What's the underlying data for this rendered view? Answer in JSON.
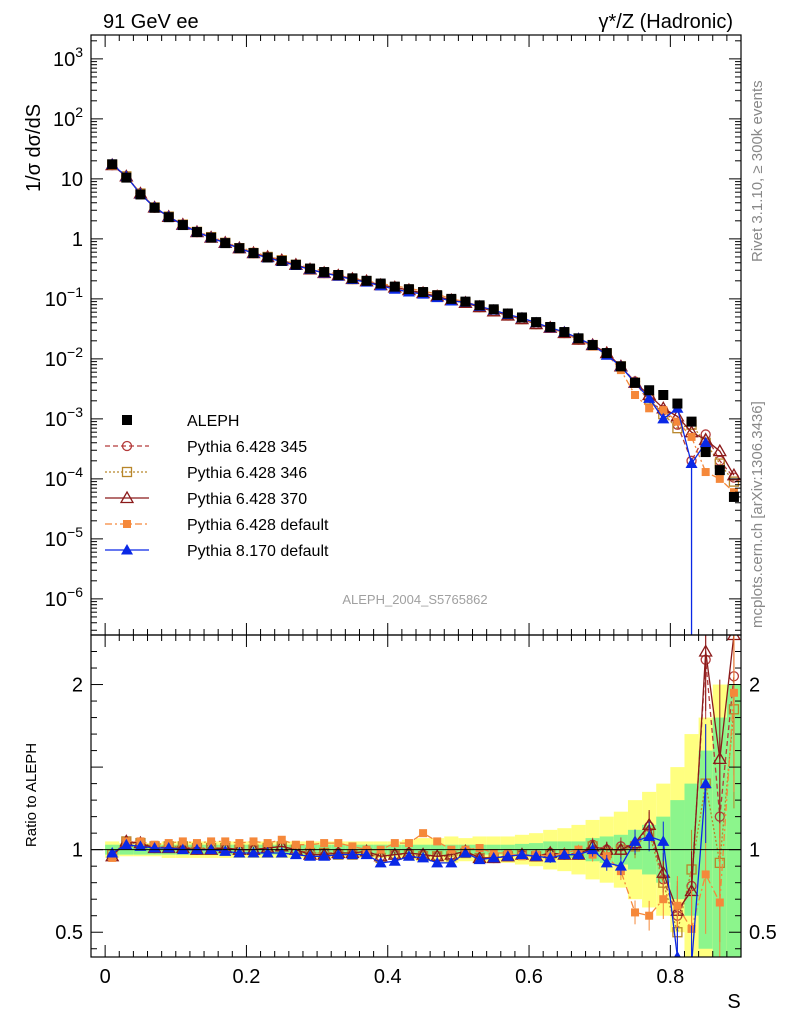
{
  "header": {
    "left": "91 GeV ee",
    "right": "γ*/Z (Hadronic)"
  },
  "side_notes": {
    "rivet": "Rivet 3.1.10, ≥ 300k events",
    "mcplots": "mcplots.cern.ch [arXiv:1306.3436]"
  },
  "analysis_tag": "ALEPH_2004_S5765862",
  "chart_data": [
    {
      "type": "scatter",
      "ylabel": "1/σ dσ/dS",
      "xlabel": "S",
      "yscale": "log",
      "ylim": [
        2.5e-07,
        2500
      ],
      "xlim": [
        -0.02,
        0.9
      ],
      "y_tick_labels": [
        {
          "value": 1000,
          "label": "10^3"
        },
        {
          "value": 100,
          "label": "10^2"
        },
        {
          "value": 10,
          "label": "10"
        },
        {
          "value": 1,
          "label": "1"
        },
        {
          "value": 0.1,
          "label": "10^-1"
        },
        {
          "value": 0.01,
          "label": "10^-2"
        },
        {
          "value": 0.001,
          "label": "10^-3"
        },
        {
          "value": 0.0001,
          "label": "10^-4"
        },
        {
          "value": 1e-05,
          "label": "10^-5"
        },
        {
          "value": 1e-06,
          "label": "10^-6"
        }
      ],
      "legend_position": "middle-left",
      "x": [
        0.01,
        0.03,
        0.05,
        0.07,
        0.09,
        0.11,
        0.13,
        0.15,
        0.17,
        0.19,
        0.21,
        0.23,
        0.25,
        0.27,
        0.29,
        0.31,
        0.33,
        0.35,
        0.37,
        0.39,
        0.41,
        0.43,
        0.45,
        0.47,
        0.49,
        0.51,
        0.53,
        0.55,
        0.57,
        0.59,
        0.61,
        0.63,
        0.65,
        0.67,
        0.69,
        0.71,
        0.73,
        0.75,
        0.77,
        0.79,
        0.81,
        0.83,
        0.85,
        0.87,
        0.89
      ],
      "series": [
        {
          "name": "ALEPH",
          "style": "data",
          "color": "#000000",
          "values": [
            17.5,
            10.5,
            5.5,
            3.3,
            2.3,
            1.7,
            1.3,
            1.05,
            0.85,
            0.7,
            0.58,
            0.49,
            0.43,
            0.37,
            0.32,
            0.28,
            0.25,
            0.22,
            0.2,
            0.18,
            0.16,
            0.145,
            0.13,
            0.115,
            0.1,
            0.09,
            0.078,
            0.067,
            0.057,
            0.049,
            0.041,
            0.034,
            0.028,
            0.022,
            0.017,
            0.0125,
            0.0075,
            0.004,
            0.003,
            0.0025,
            0.0018,
            0.0009,
            0.00028,
            0.00014,
            5e-05
          ]
        },
        {
          "name": "Pythia 6.428 345",
          "style": "open-circle-dashed",
          "color": "#b33a3a",
          "values": [
            17,
            11,
            5.7,
            3.3,
            2.35,
            1.73,
            1.3,
            1.06,
            0.86,
            0.7,
            0.58,
            0.5,
            0.44,
            0.37,
            0.31,
            0.27,
            0.245,
            0.215,
            0.197,
            0.17,
            0.155,
            0.14,
            0.125,
            0.11,
            0.095,
            0.086,
            0.073,
            0.062,
            0.053,
            0.046,
            0.038,
            0.033,
            0.027,
            0.021,
            0.017,
            0.0125,
            0.0075,
            0.0042,
            0.0019,
            0.0014,
            0.0008,
            0.0002,
            0.00055,
            0.0002,
            0.000105
          ]
        },
        {
          "name": "Pythia 6.428 346",
          "style": "open-square-dotted",
          "color": "#b8862a",
          "values": [
            17.2,
            11,
            5.7,
            3.35,
            2.35,
            1.73,
            1.31,
            1.07,
            0.86,
            0.7,
            0.58,
            0.5,
            0.44,
            0.37,
            0.31,
            0.27,
            0.243,
            0.214,
            0.196,
            0.17,
            0.155,
            0.14,
            0.125,
            0.11,
            0.095,
            0.086,
            0.073,
            0.062,
            0.053,
            0.046,
            0.038,
            0.033,
            0.027,
            0.021,
            0.017,
            0.0122,
            0.0075,
            0.004,
            0.0021,
            0.0012,
            0.0007,
            0.0008,
            0.0004,
            0.00018,
            9e-05
          ]
        },
        {
          "name": "Pythia 6.428 370",
          "style": "open-triangle-solid",
          "color": "#8b1a1a",
          "values": [
            17,
            11,
            5.7,
            3.33,
            2.33,
            1.72,
            1.3,
            1.05,
            0.86,
            0.7,
            0.58,
            0.5,
            0.44,
            0.37,
            0.31,
            0.27,
            0.245,
            0.215,
            0.197,
            0.17,
            0.155,
            0.14,
            0.125,
            0.11,
            0.095,
            0.086,
            0.073,
            0.062,
            0.053,
            0.046,
            0.038,
            0.033,
            0.027,
            0.021,
            0.017,
            0.0125,
            0.0075,
            0.004,
            0.0025,
            0.0015,
            0.0011,
            0.0006,
            0.00045,
            0.00029,
            0.000115
          ]
        },
        {
          "name": "Pythia 6.428 default",
          "style": "filled-square-dashdot",
          "color": "#f5883a",
          "values": [
            16.5,
            11,
            5.8,
            3.4,
            2.4,
            1.78,
            1.35,
            1.1,
            0.89,
            0.73,
            0.61,
            0.51,
            0.45,
            0.38,
            0.33,
            0.29,
            0.26,
            0.225,
            0.2,
            0.18,
            0.165,
            0.15,
            0.135,
            0.12,
            0.1,
            0.09,
            0.075,
            0.064,
            0.055,
            0.047,
            0.039,
            0.033,
            0.027,
            0.021,
            0.016,
            0.012,
            0.0065,
            0.0025,
            0.0015,
            0.0014,
            0.0009,
            0.0005,
            0.00013,
            0.0001,
            6e-05
          ]
        },
        {
          "name": "Pythia 8.170 default",
          "style": "filled-triangle-solid",
          "color": "#0a28e6",
          "values": [
            17.5,
            11,
            5.6,
            3.35,
            2.35,
            1.7,
            1.3,
            1.05,
            0.85,
            0.7,
            0.57,
            0.48,
            0.42,
            0.36,
            0.31,
            0.27,
            0.24,
            0.21,
            0.19,
            0.165,
            0.145,
            0.13,
            0.12,
            0.105,
            0.092,
            0.088,
            0.075,
            0.065,
            0.055,
            0.048,
            0.04,
            0.033,
            0.028,
            0.022,
            0.017,
            0.0115,
            0.0075,
            0.004,
            0.0022,
            0.001,
            0.0015,
            0.00018,
            0.0004,
            null,
            null
          ]
        }
      ]
    },
    {
      "type": "scatter",
      "ylabel": "Ratio to ALEPH",
      "xlabel": "S",
      "ylim": [
        0.35,
        2.3
      ],
      "y_tick_labels": [
        {
          "value": 0.5,
          "label": "0.5"
        },
        {
          "value": 1,
          "label": "1"
        },
        {
          "value": 2,
          "label": "2"
        }
      ],
      "x_tick_labels": [
        {
          "value": 0,
          "label": "0"
        },
        {
          "value": 0.2,
          "label": "0.2"
        },
        {
          "value": 0.4,
          "label": "0.4"
        },
        {
          "value": 0.6,
          "label": "0.6"
        },
        {
          "value": 0.8,
          "label": "0.8"
        }
      ],
      "band_colors": {
        "outer": "#ffff80",
        "inner": "#8cf58c"
      },
      "bands": {
        "inner": [
          0.03,
          0.03,
          0.03,
          0.03,
          0.03,
          0.03,
          0.03,
          0.03,
          0.03,
          0.03,
          0.03,
          0.03,
          0.03,
          0.03,
          0.03,
          0.03,
          0.03,
          0.03,
          0.03,
          0.03,
          0.03,
          0.03,
          0.03,
          0.03,
          0.03,
          0.03,
          0.03,
          0.03,
          0.03,
          0.035,
          0.04,
          0.05,
          0.05,
          0.05,
          0.07,
          0.08,
          0.09,
          0.12,
          0.15,
          0.2,
          0.3,
          0.4,
          0.6,
          0.8,
          1.0
        ],
        "outer": [
          0.05,
          0.04,
          0.04,
          0.04,
          0.05,
          0.05,
          0.05,
          0.05,
          0.05,
          0.05,
          0.05,
          0.05,
          0.05,
          0.05,
          0.05,
          0.05,
          0.05,
          0.05,
          0.05,
          0.05,
          0.05,
          0.06,
          0.07,
          0.07,
          0.08,
          0.07,
          0.08,
          0.08,
          0.08,
          0.09,
          0.1,
          0.12,
          0.13,
          0.15,
          0.18,
          0.2,
          0.23,
          0.3,
          0.35,
          0.4,
          0.5,
          0.7,
          0.8,
          1.0,
          1.0
        ]
      },
      "series": [
        {
          "name": "Pythia 6.428 345",
          "color": "#b33a3a",
          "values": [
            0.96,
            1.05,
            1.03,
            1.01,
            1.02,
            1.02,
            1.0,
            1.01,
            1.01,
            1.0,
            1.0,
            1.01,
            1.02,
            1.0,
            0.98,
            0.98,
            0.98,
            0.98,
            0.99,
            0.96,
            0.97,
            0.98,
            0.97,
            0.96,
            0.97,
            0.99,
            0.95,
            0.95,
            0.96,
            0.97,
            0.96,
            0.98,
            0.97,
            0.98,
            1.03,
            1.0,
            1.02,
            1.03,
            1.14,
            0.82,
            0.6,
            0.78,
            2.15,
            1.2,
            2.05
          ]
        },
        {
          "name": "Pythia 6.428 346",
          "color": "#b8862a",
          "values": [
            0.97,
            1.05,
            1.04,
            1.02,
            1.02,
            1.02,
            1.01,
            1.01,
            1.01,
            1.0,
            1.0,
            1.01,
            1.02,
            1.0,
            0.98,
            0.98,
            0.97,
            0.97,
            0.98,
            0.95,
            0.97,
            0.97,
            0.96,
            0.96,
            0.96,
            0.98,
            0.95,
            0.95,
            0.96,
            0.97,
            0.96,
            0.97,
            0.97,
            0.97,
            1.02,
            0.98,
            1.0,
            1.02,
            1.1,
            0.8,
            0.5,
            0.88,
            1.4,
            0.92,
            1.85
          ]
        },
        {
          "name": "Pythia 6.428 370",
          "color": "#8b1a1a",
          "values": [
            0.96,
            1.05,
            1.04,
            1.01,
            1.01,
            1.01,
            1.0,
            1.0,
            1.01,
            1.0,
            1.0,
            1.01,
            1.02,
            1.0,
            0.97,
            0.97,
            0.98,
            0.98,
            0.99,
            0.96,
            0.97,
            0.98,
            0.97,
            0.96,
            0.97,
            0.99,
            0.95,
            0.95,
            0.96,
            0.97,
            0.96,
            0.98,
            0.97,
            0.97,
            1.02,
            1.0,
            1.0,
            1.04,
            1.15,
            0.86,
            0.63,
            0.75,
            2.2,
            1.55,
            2.3
          ]
        },
        {
          "name": "Pythia 6.428 default",
          "color": "#f5883a",
          "values": [
            0.95,
            1.05,
            1.05,
            1.03,
            1.04,
            1.05,
            1.04,
            1.05,
            1.05,
            1.04,
            1.05,
            1.04,
            1.06,
            1.03,
            1.03,
            1.04,
            1.04,
            1.02,
            1.0,
            1.0,
            1.04,
            1.04,
            1.1,
            1.05,
            1.0,
            1.0,
            1.01,
            0.98,
            0.98,
            0.96,
            0.97,
            0.96,
            0.98,
            1.0,
            0.97,
            0.96,
            0.87,
            0.62,
            0.6,
            0.7,
            0.66,
            0.52,
            0.85,
            0.68,
            1.95
          ]
        },
        {
          "name": "Pythia 8.170 default",
          "color": "#0a28e6",
          "values": [
            0.98,
            1.03,
            1.02,
            1.01,
            1.01,
            1.0,
            1.0,
            1.0,
            0.99,
            0.98,
            0.98,
            0.98,
            0.98,
            0.97,
            0.96,
            0.96,
            0.97,
            0.97,
            0.97,
            0.92,
            0.93,
            0.96,
            0.95,
            0.92,
            0.92,
            0.98,
            0.94,
            0.95,
            0.96,
            0.97,
            0.96,
            0.95,
            0.97,
            0.97,
            1.0,
            0.92,
            0.9,
            1.05,
            1.08,
            1.05,
            0.35,
            0.3,
            1.4,
            null,
            null
          ]
        }
      ]
    }
  ]
}
